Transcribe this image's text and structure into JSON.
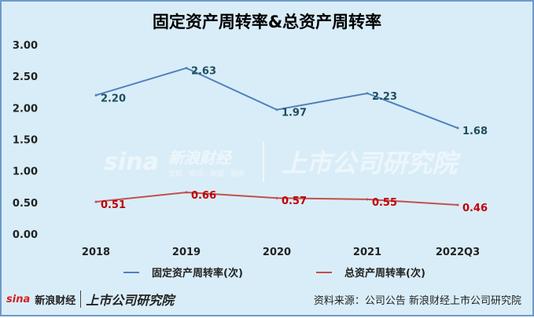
{
  "chart_data": {
    "type": "line",
    "title": "固定资产周转率&总资产周转率",
    "categories": [
      "2018",
      "2019",
      "2020",
      "2021",
      "2022Q3"
    ],
    "series": [
      {
        "name": "固定资产周转率(次)",
        "values": [
          2.2,
          2.63,
          1.97,
          2.23,
          1.68
        ],
        "color": "#4e81bd",
        "label_color": "#1f4e5e"
      },
      {
        "name": "总资产周转率(次)",
        "values": [
          0.51,
          0.66,
          0.57,
          0.55,
          0.46
        ],
        "color": "#c0504d",
        "label_color": "#c00000"
      }
    ],
    "y_ticks": [
      "0.00",
      "0.50",
      "1.00",
      "1.50",
      "2.00",
      "2.50",
      "3.00"
    ],
    "ylim": [
      0,
      3
    ],
    "grid": false,
    "legend": "bottom"
  },
  "watermark": {
    "logo": "sina",
    "brand": "新浪财经",
    "brand_sub": "文娱 · 资讯 · 数据 · 服务",
    "institute": "上市公司研究院"
  },
  "footer": {
    "logo": "sina",
    "brand": "新浪财经",
    "institute": "上市公司研究院",
    "source": "资料来源：公司公告 新浪财经上市公司研究院"
  }
}
